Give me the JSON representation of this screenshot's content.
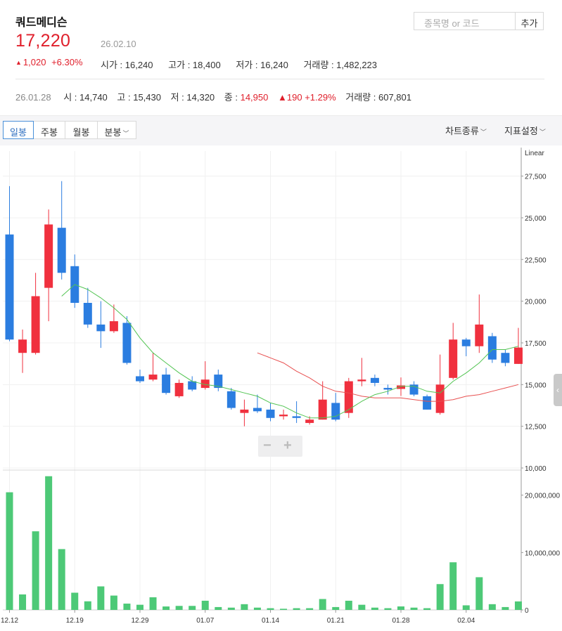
{
  "stock": {
    "name": "쿼드메디슨",
    "price": "17,220",
    "date": "26.02.10",
    "change": "1,020",
    "change_pct": "+6.30%",
    "open": "시가 : 16,240",
    "high": "고가 : 18,400",
    "low": "저가 : 16,240",
    "volume": "거래량 : 1,482,223"
  },
  "search": {
    "placeholder": "종목명 or 코드",
    "add_label": "추가"
  },
  "prev_day": {
    "date": "26.01.28",
    "open": "시 : 14,740",
    "high": "고 : 15,430",
    "low": "저 : 14,320",
    "close_label": "종 : ",
    "close": "14,950",
    "change": "190",
    "change_pct": "+1.29%",
    "volume": "거래량 : 607,801"
  },
  "toolbar": {
    "tabs": [
      "일봉",
      "주봉",
      "월봉",
      "분봉"
    ],
    "chart_type_label": "차트종류",
    "indicator_label": "지표설정"
  },
  "colors": {
    "up": "#f0303e",
    "down": "#2b7de0",
    "volume": "#4dc977",
    "ma5": "#52c452",
    "ma20": "#e85050"
  },
  "chart_data": {
    "type": "candlestick",
    "scale_label": "Linear",
    "price_ylim": [
      10000,
      29000
    ],
    "price_ticks": [
      "10,000",
      "12,500",
      "15,000",
      "17,500",
      "20,000",
      "22,500",
      "25,000",
      "27,500"
    ],
    "volume_ylim": [
      0,
      24000000
    ],
    "volume_ticks": [
      "0",
      "10,000,000",
      "20,000,000"
    ],
    "x_labels": [
      {
        "i": 0,
        "label": "12.12"
      },
      {
        "i": 5,
        "label": "12.19"
      },
      {
        "i": 10,
        "label": "12.29"
      },
      {
        "i": 15,
        "label": "01.07"
      },
      {
        "i": 20,
        "label": "01.14"
      },
      {
        "i": 25,
        "label": "01.21"
      },
      {
        "i": 30,
        "label": "01.28"
      },
      {
        "i": 35,
        "label": "02.04"
      }
    ],
    "candles": [
      {
        "o": 24000,
        "h": 26900,
        "l": 17600,
        "c": 17700,
        "v": 20500000
      },
      {
        "o": 16900,
        "h": 18300,
        "l": 15700,
        "c": 17700,
        "v": 2700000
      },
      {
        "o": 16900,
        "h": 21700,
        "l": 16800,
        "c": 20300,
        "v": 13700000
      },
      {
        "o": 20800,
        "h": 25500,
        "l": 18800,
        "c": 24600,
        "v": 23300000
      },
      {
        "o": 24400,
        "h": 27200,
        "l": 21300,
        "c": 21700,
        "v": 10600000
      },
      {
        "o": 22100,
        "h": 22800,
        "l": 19600,
        "c": 19900,
        "v": 3000000
      },
      {
        "o": 19900,
        "h": 20800,
        "l": 18400,
        "c": 18600,
        "v": 1500000
      },
      {
        "o": 18600,
        "h": 20000,
        "l": 17200,
        "c": 18200,
        "v": 4100000
      },
      {
        "o": 18200,
        "h": 19800,
        "l": 18100,
        "c": 18800,
        "v": 2500000
      },
      {
        "o": 18700,
        "h": 19100,
        "l": 16200,
        "c": 16300,
        "v": 1100000
      },
      {
        "o": 15500,
        "h": 15900,
        "l": 15100,
        "c": 15200,
        "v": 900000
      },
      {
        "o": 15300,
        "h": 16900,
        "l": 15200,
        "c": 15600,
        "v": 2200000
      },
      {
        "o": 15600,
        "h": 16000,
        "l": 14400,
        "c": 14500,
        "v": 600000
      },
      {
        "o": 14300,
        "h": 15300,
        "l": 14200,
        "c": 15100,
        "v": 700000
      },
      {
        "o": 15200,
        "h": 15500,
        "l": 14600,
        "c": 14700,
        "v": 700000
      },
      {
        "o": 14800,
        "h": 16400,
        "l": 14700,
        "c": 15300,
        "v": 1600000
      },
      {
        "o": 15600,
        "h": 15900,
        "l": 14600,
        "c": 14800,
        "v": 500000
      },
      {
        "o": 14600,
        "h": 14800,
        "l": 13500,
        "c": 13600,
        "v": 400000
      },
      {
        "o": 13300,
        "h": 14100,
        "l": 12500,
        "c": 13500,
        "v": 1000000
      },
      {
        "o": 13600,
        "h": 14400,
        "l": 13300,
        "c": 13400,
        "v": 400000
      },
      {
        "o": 13500,
        "h": 13900,
        "l": 12800,
        "c": 13000,
        "v": 300000
      },
      {
        "o": 13100,
        "h": 13500,
        "l": 12900,
        "c": 13200,
        "v": 200000
      },
      {
        "o": 13100,
        "h": 14000,
        "l": 12700,
        "c": 13000,
        "v": 300000
      },
      {
        "o": 12700,
        "h": 13100,
        "l": 12600,
        "c": 12900,
        "v": 300000
      },
      {
        "o": 12900,
        "h": 15200,
        "l": 12900,
        "c": 14100,
        "v": 1900000
      },
      {
        "o": 13900,
        "h": 14500,
        "l": 12800,
        "c": 12900,
        "v": 500000
      },
      {
        "o": 13300,
        "h": 15400,
        "l": 13000,
        "c": 15200,
        "v": 1600000
      },
      {
        "o": 15200,
        "h": 16600,
        "l": 14900,
        "c": 15300,
        "v": 900000
      },
      {
        "o": 15400,
        "h": 15600,
        "l": 14900,
        "c": 15100,
        "v": 400000
      },
      {
        "o": 14800,
        "h": 15000,
        "l": 14400,
        "c": 14700,
        "v": 300000
      },
      {
        "o": 14740,
        "h": 15430,
        "l": 14320,
        "c": 14950,
        "v": 607801
      },
      {
        "o": 15000,
        "h": 15200,
        "l": 14300,
        "c": 14400,
        "v": 400000
      },
      {
        "o": 14300,
        "h": 14400,
        "l": 13500,
        "c": 13500,
        "v": 300000
      },
      {
        "o": 13300,
        "h": 16800,
        "l": 13200,
        "c": 15000,
        "v": 4500000
      },
      {
        "o": 15400,
        "h": 18700,
        "l": 15300,
        "c": 17700,
        "v": 8300000
      },
      {
        "o": 17700,
        "h": 17800,
        "l": 16700,
        "c": 17300,
        "v": 800000
      },
      {
        "o": 17300,
        "h": 20400,
        "l": 16900,
        "c": 18600,
        "v": 5700000
      },
      {
        "o": 17900,
        "h": 18100,
        "l": 16300,
        "c": 16500,
        "v": 1000000
      },
      {
        "o": 16900,
        "h": 17100,
        "l": 16100,
        "c": 16300,
        "v": 500000
      },
      {
        "o": 16240,
        "h": 18400,
        "l": 16240,
        "c": 17220,
        "v": 1482223
      }
    ],
    "ma5": [
      null,
      null,
      null,
      null,
      20300,
      21000,
      20700,
      20200,
      19600,
      18900,
      17800,
      16900,
      16300,
      15700,
      15200,
      15000,
      14900,
      14700,
      14500,
      14300,
      13900,
      13700,
      13300,
      13000,
      13000,
      13100,
      13500,
      14000,
      14400,
      14600,
      14900,
      14900,
      14600,
      14500,
      15200,
      15700,
      16300,
      17100,
      17100,
      17300
    ],
    "ma20": [
      null,
      null,
      null,
      null,
      null,
      null,
      null,
      null,
      null,
      null,
      null,
      null,
      null,
      null,
      null,
      null,
      null,
      null,
      null,
      16900,
      16600,
      16300,
      15800,
      15400,
      14900,
      14600,
      14500,
      14300,
      14200,
      14200,
      14200,
      14100,
      14000,
      14000,
      14100,
      14300,
      14400,
      14600,
      14800,
      15000
    ]
  }
}
